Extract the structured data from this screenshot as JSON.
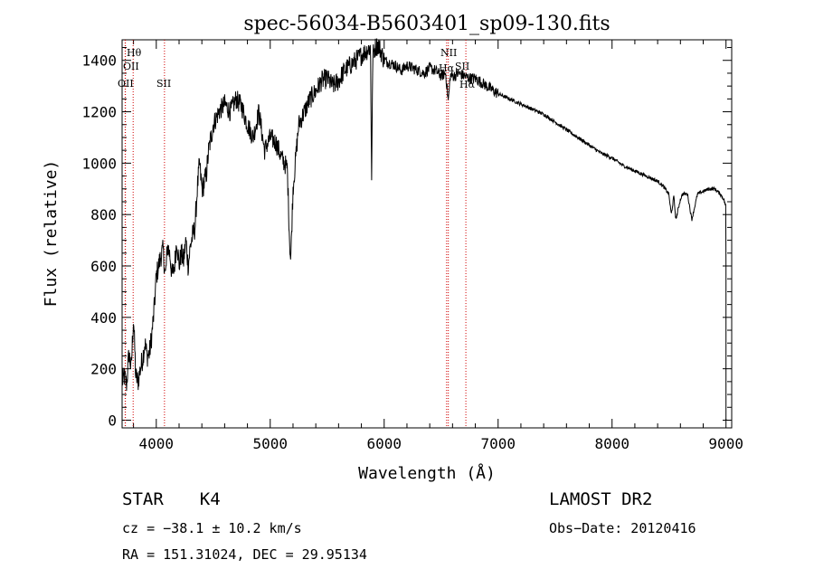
{
  "chart_data": {
    "type": "line",
    "title": "spec-56034-B5603401_sp09-130.fits",
    "xlabel": "Wavelength (Å)",
    "ylabel": "Flux (relative)",
    "xlim": [
      3700,
      9050
    ],
    "ylim": [
      -30,
      1480
    ],
    "xticks": [
      4000,
      5000,
      6000,
      7000,
      8000,
      9000
    ],
    "xtick_labels": [
      "4000",
      "5000",
      "6000",
      "7000",
      "8000",
      "9000"
    ],
    "yticks": [
      0,
      200,
      400,
      600,
      800,
      1000,
      1200,
      1400
    ],
    "ytick_labels": [
      "0",
      "200",
      "400",
      "600",
      "800",
      "1000",
      "1200",
      "1400"
    ],
    "series": [
      {
        "name": "flux",
        "x": [
          3700,
          3720,
          3740,
          3760,
          3780,
          3800,
          3820,
          3840,
          3860,
          3880,
          3900,
          3920,
          3940,
          3960,
          3980,
          4000,
          4020,
          4040,
          4060,
          4080,
          4100,
          4120,
          4140,
          4160,
          4180,
          4200,
          4220,
          4240,
          4260,
          4280,
          4300,
          4320,
          4340,
          4360,
          4380,
          4400,
          4420,
          4440,
          4460,
          4500,
          4550,
          4600,
          4650,
          4700,
          4750,
          4800,
          4850,
          4900,
          4950,
          5000,
          5050,
          5100,
          5150,
          5170,
          5180,
          5200,
          5250,
          5300,
          5350,
          5400,
          5450,
          5500,
          5550,
          5600,
          5650,
          5700,
          5750,
          5800,
          5850,
          5880,
          5890,
          5900,
          5920,
          5950,
          6000,
          6050,
          6100,
          6150,
          6200,
          6250,
          6300,
          6350,
          6400,
          6450,
          6500,
          6540,
          6563,
          6580,
          6620,
          6650,
          6700,
          6750,
          6800,
          6900,
          7000,
          7100,
          7200,
          7300,
          7400,
          7500,
          7600,
          7700,
          7800,
          7900,
          8000,
          8100,
          8200,
          8300,
          8400,
          8450,
          8498,
          8520,
          8542,
          8560,
          8600,
          8620,
          8662,
          8700,
          8750,
          8800,
          8850,
          8900,
          8950,
          8980,
          9000
        ],
        "values": [
          150,
          170,
          140,
          260,
          200,
          400,
          170,
          150,
          200,
          240,
          300,
          250,
          260,
          330,
          420,
          560,
          600,
          640,
          660,
          560,
          680,
          640,
          560,
          600,
          700,
          600,
          650,
          620,
          700,
          600,
          680,
          720,
          750,
          900,
          1000,
          900,
          920,
          960,
          1050,
          1150,
          1200,
          1230,
          1200,
          1250,
          1220,
          1150,
          1100,
          1200,
          1050,
          1100,
          1080,
          1020,
          980,
          700,
          620,
          900,
          1150,
          1200,
          1250,
          1280,
          1320,
          1330,
          1300,
          1320,
          1360,
          1380,
          1400,
          1420,
          1440,
          1450,
          950,
          1420,
          1450,
          1460,
          1400,
          1390,
          1380,
          1360,
          1380,
          1370,
          1360,
          1350,
          1370,
          1360,
          1340,
          1350,
          1240,
          1340,
          1340,
          1350,
          1340,
          1330,
          1330,
          1300,
          1270,
          1250,
          1230,
          1210,
          1190,
          1160,
          1130,
          1100,
          1070,
          1040,
          1020,
          990,
          970,
          950,
          930,
          910,
          880,
          800,
          870,
          780,
          860,
          880,
          880,
          780,
          880,
          890,
          900,
          900,
          880,
          860,
          830
        ]
      }
    ],
    "lines": [
      {
        "wavelength": 3727,
        "labels": [
          "OII"
        ]
      },
      {
        "wavelength": 3729,
        "labels": [
          "OII"
        ]
      },
      {
        "wavelength": 3797,
        "labels": [
          "Hθ"
        ]
      },
      {
        "wavelength": 4072,
        "labels": [
          "SII"
        ]
      },
      {
        "wavelength": 6548,
        "labels": [
          "NII"
        ]
      },
      {
        "wavelength": 6563,
        "labels": [
          "Hα"
        ]
      },
      {
        "wavelength": 6717,
        "labels": [
          "SII"
        ]
      }
    ],
    "line_labels": {
      "oii_a": "OII",
      "oii_b": "OII",
      "htheta": "Hθ",
      "sii_blue": "SII",
      "nii": "NII",
      "halpha": "Hα",
      "sii_red": "SII",
      "ha_partial": "Hα"
    }
  },
  "info": {
    "object_class": "STAR",
    "subclass": "K4",
    "cz": "cz = −38.1 ± 10.2 km/s",
    "coords": "RA = 151.31024, DEC =  29.95134",
    "survey": "LAMOST DR2",
    "obs_date": "Obs−Date: 20120416"
  }
}
